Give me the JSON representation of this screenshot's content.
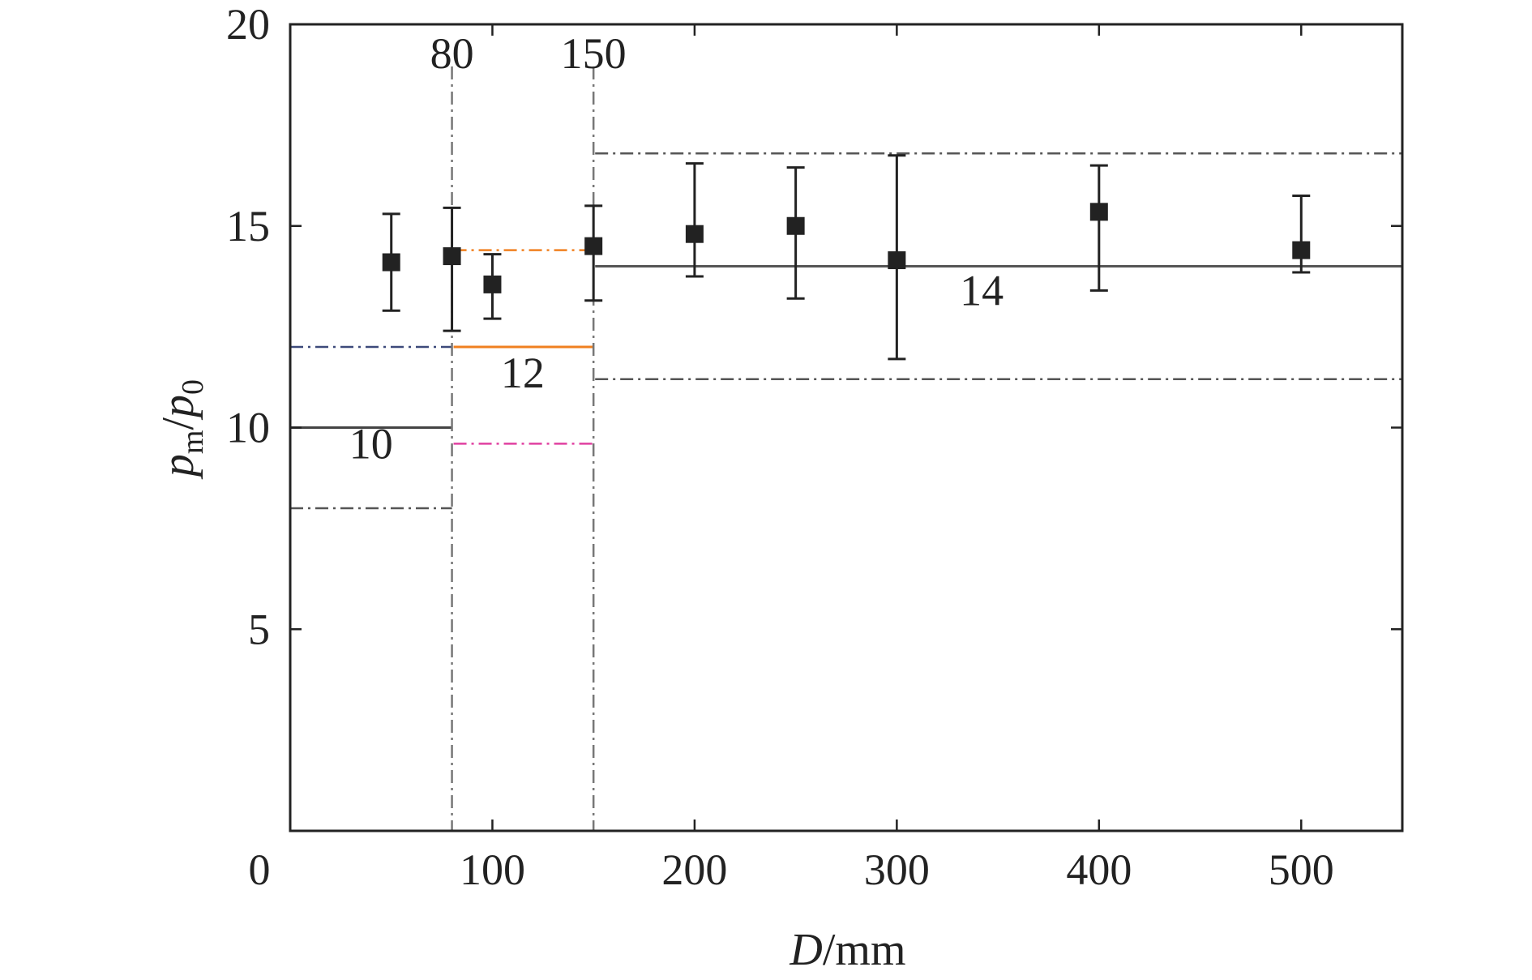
{
  "chart_data": {
    "type": "scatter",
    "title": "",
    "xlabel": {
      "var": "D",
      "unit": "/mm"
    },
    "ylabel": {
      "num": "p",
      "num_sub": "m",
      "sep": "/",
      "den": "p",
      "den_sub": "0"
    },
    "xlim": [
      0,
      550
    ],
    "ylim": [
      0,
      20
    ],
    "xticks": [
      {
        "value": 0,
        "label": "0"
      },
      {
        "value": 100,
        "label": "100"
      },
      {
        "value": 200,
        "label": "200"
      },
      {
        "value": 300,
        "label": "300"
      },
      {
        "value": 400,
        "label": "400"
      },
      {
        "value": 500,
        "label": "500"
      }
    ],
    "yticks": [
      {
        "value": 5,
        "label": "5"
      },
      {
        "value": 10,
        "label": "10"
      },
      {
        "value": 15,
        "label": "15"
      },
      {
        "value": 20,
        "label": "20"
      }
    ],
    "grid": false,
    "series": [
      {
        "marker": "square",
        "color": "#222222",
        "points": [
          {
            "x": 50,
            "y": 14.1,
            "err_low": 12.9,
            "err_high": 15.3
          },
          {
            "x": 80,
            "y": 14.25,
            "err_low": 12.4,
            "err_high": 15.45
          },
          {
            "x": 100,
            "y": 13.55,
            "err_low": 12.7,
            "err_high": 14.3
          },
          {
            "x": 150,
            "y": 14.5,
            "err_low": 13.15,
            "err_high": 15.5
          },
          {
            "x": 200,
            "y": 14.8,
            "err_low": 13.75,
            "err_high": 16.55
          },
          {
            "x": 250,
            "y": 15.0,
            "err_low": 13.2,
            "err_high": 16.45
          },
          {
            "x": 300,
            "y": 14.15,
            "err_low": 11.7,
            "err_high": 16.75
          },
          {
            "x": 400,
            "y": 15.35,
            "err_low": 13.4,
            "err_high": 16.5
          },
          {
            "x": 500,
            "y": 14.4,
            "err_low": 13.85,
            "err_high": 15.75
          }
        ]
      }
    ],
    "levels": [
      {
        "x_start": 0,
        "x_end": 80,
        "value": 10,
        "label": "10",
        "color": "#444444",
        "band": [
          8,
          12
        ],
        "band_color": "#555555",
        "band_color_upper": "#3d4a7a"
      },
      {
        "x_start": 80,
        "x_end": 150,
        "value": 12,
        "label": "12",
        "color": "#f08020",
        "band": [
          9.6,
          14.4
        ],
        "band_color": "#f08020",
        "band_color_alt": "#e040a0"
      },
      {
        "x_start": 150,
        "x_end": 550,
        "value": 14,
        "label": "14",
        "color": "#555555",
        "band": [
          11.2,
          16.8
        ],
        "band_color": "#555555"
      }
    ],
    "boundaries": [
      {
        "x": 80,
        "label": "80"
      },
      {
        "x": 150,
        "label": "150"
      }
    ]
  }
}
